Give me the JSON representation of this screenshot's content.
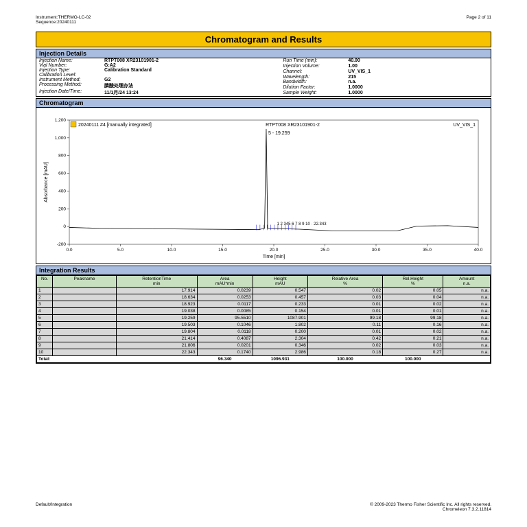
{
  "header": {
    "instrument_label": "Instrument:",
    "instrument_value": "THERMO-LC-02",
    "sequence_label": "Sequence:",
    "sequence_value": "20240111",
    "page_text": "Page 2 of 11"
  },
  "title": "Chromatogram and Results",
  "injection_details": {
    "heading": "Injection Details",
    "left": [
      [
        "Injection Name:",
        "RTPT008 XR23101901-2"
      ],
      [
        "Vial Number:",
        "G:A2"
      ],
      [
        "Injection Type:",
        "Calibration Standard"
      ],
      [
        "Calibration Level:",
        ""
      ],
      [
        "Instrument Method:",
        "G2"
      ],
      [
        "Processing Method:",
        "膦酸处理办法"
      ],
      [
        "Injection Date/Time:",
        "11/1月/24 13:24"
      ]
    ],
    "right": [
      [
        "Run Time (min):",
        "40.00"
      ],
      [
        "Injection Volume:",
        "1.00"
      ],
      [
        "Channel:",
        "UV_VIS_1"
      ],
      [
        "Wavelength:",
        "215"
      ],
      [
        "Bandwidth:",
        "n.a."
      ],
      [
        "Dilution Factor:",
        "1.0000"
      ],
      [
        "Sample Weight:",
        "1.0000"
      ]
    ]
  },
  "chromatogram": {
    "heading": "Chromatogram",
    "info_text": "20240111 #4 [manually integrated]",
    "sample_text": "RTPT008 XR23101901-2",
    "channel_text": "UV_VIS_1",
    "xlabel": "Time [min]",
    "ylabel": "Absorbance [mAU]",
    "xlim": [
      0,
      40
    ],
    "ylim": [
      -200,
      1200
    ],
    "xticks": [
      0.0,
      5.0,
      10.0,
      15.0,
      20.0,
      25.0,
      30.0,
      35.0,
      40.0
    ],
    "yticks": [
      -200,
      0,
      200,
      400,
      600,
      800,
      1000,
      1200
    ],
    "peak_label": "5 - 19.259",
    "baseline_color": "#000000",
    "peak_marker_color": "#0000ff",
    "peak_marker_region": "18.2–22.5",
    "grid_color": "#e8e8e8",
    "background_color": "#ffffff",
    "main_peak_x": 19.259,
    "main_peak_y": 1100,
    "baseline_y_approx": -20
  },
  "integration": {
    "heading": "Integration Results",
    "columns": [
      {
        "top": "No.",
        "sub": ""
      },
      {
        "top": "Peakname",
        "sub": ""
      },
      {
        "top": "RetentionTime",
        "sub": "min"
      },
      {
        "top": "Area",
        "sub": "mAU*min"
      },
      {
        "top": "Height",
        "sub": "mAU"
      },
      {
        "top": "Relative Area",
        "sub": "%"
      },
      {
        "top": "Rel.Height",
        "sub": "%"
      },
      {
        "top": "Amount",
        "sub": "n.a."
      }
    ],
    "rows": [
      [
        "1",
        "",
        "17.914",
        "0.0239",
        "0.547",
        "0.02",
        "0.05",
        "n.a."
      ],
      [
        "2",
        "",
        "18.634",
        "0.0253",
        "0.457",
        "0.03",
        "0.04",
        "n.a."
      ],
      [
        "3",
        "",
        "18.923",
        "0.0117",
        "0.233",
        "0.01",
        "0.02",
        "n.a."
      ],
      [
        "4",
        "",
        "19.038",
        "0.0085",
        "0.154",
        "0.01",
        "0.01",
        "n.a."
      ],
      [
        "5",
        "",
        "19.259",
        "95.5510",
        "1087.901",
        "99.18",
        "99.18",
        "n.a."
      ],
      [
        "6",
        "",
        "19.503",
        "0.1046",
        "1.802",
        "0.11",
        "0.16",
        "n.a."
      ],
      [
        "7",
        "",
        "19.804",
        "0.0118",
        "0.200",
        "0.01",
        "0.02",
        "n.a."
      ],
      [
        "8",
        "",
        "21.414",
        "0.4087",
        "2.304",
        "0.42",
        "0.21",
        "n.a."
      ],
      [
        "9",
        "",
        "21.806",
        "0.0201",
        "0.346",
        "0.02",
        "0.03",
        "n.a."
      ],
      [
        "10",
        "",
        "22.343",
        "0.1740",
        "2.986",
        "0.18",
        "0.27",
        "n.a."
      ]
    ],
    "total": [
      "Total:",
      "",
      "",
      "96.340",
      "1096.931",
      "100.000",
      "100.000",
      ""
    ]
  },
  "footer": {
    "left": "Default/Integration",
    "copyright": "© 2009-2023 Thermo Fisher Scientific Inc. All rights reserved.",
    "version": "Chromeleon 7.3.2.11814"
  }
}
